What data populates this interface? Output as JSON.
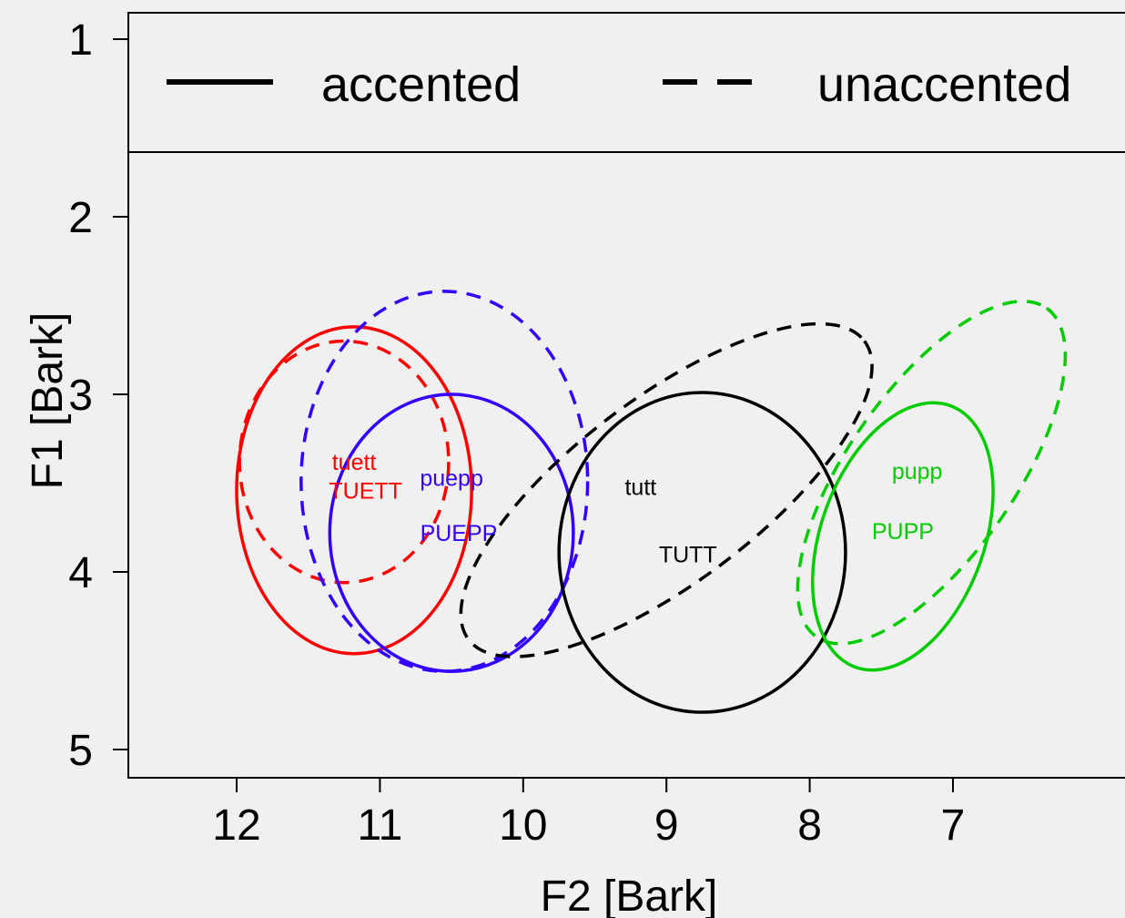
{
  "chart_data": {
    "type": "scatter",
    "subtype": "formant-ellipse-plot",
    "title": "",
    "xlabel": "F2 [Bark]",
    "ylabel": "F1 [Bark]",
    "x_axis": {
      "reversed": true,
      "ticks": [
        12,
        11,
        10,
        9,
        8,
        7
      ]
    },
    "y_axis": {
      "reversed": true,
      "ticks": [
        1,
        2,
        3,
        4,
        5
      ]
    },
    "grid": false,
    "legend": {
      "placement": "top",
      "entries": [
        {
          "label": "accented",
          "linestyle": "solid"
        },
        {
          "label": "unaccented",
          "linestyle": "dashed"
        }
      ]
    },
    "series": [
      {
        "vowel": "TUETT",
        "color": "#ff0000",
        "linestyle": "solid",
        "center": [
          11.18,
          3.54
        ],
        "rx": 0.82,
        "ry": 0.92,
        "rotation": 0
      },
      {
        "vowel": "tuett",
        "color": "#ff0000",
        "linestyle": "dashed",
        "center": [
          11.25,
          3.38
        ],
        "rx": 0.73,
        "ry": 0.68,
        "rotation": 0
      },
      {
        "vowel": "PUEPP",
        "color": "#3300ff",
        "linestyle": "solid",
        "center": [
          10.5,
          3.78
        ],
        "rx": 0.85,
        "ry": 0.78,
        "rotation": 0
      },
      {
        "vowel": "puepp",
        "color": "#3300ff",
        "linestyle": "dashed",
        "center": [
          10.55,
          3.49
        ],
        "rx": 1.0,
        "ry": 1.07,
        "rotation": 0
      },
      {
        "vowel": "TUTT",
        "color": "#000000",
        "linestyle": "solid",
        "center": [
          8.75,
          3.89
        ],
        "rx": 1.0,
        "ry": 0.9,
        "rotation": 0
      },
      {
        "vowel": "tutt",
        "color": "#000000",
        "linestyle": "dashed",
        "center": [
          9.0,
          3.54
        ],
        "rx": 1.73,
        "ry": 0.52,
        "rotation": -37
      },
      {
        "vowel": "PUPP",
        "color": "#00cc00",
        "linestyle": "solid",
        "center": [
          7.35,
          3.8
        ],
        "rx": 0.97,
        "ry": 0.46,
        "rotation": -70
      },
      {
        "vowel": "pupp",
        "color": "#00cc00",
        "linestyle": "dashed",
        "center": [
          7.15,
          3.44
        ],
        "rx": 1.4,
        "ry": 0.47,
        "rotation": -55
      }
    ],
    "labels": [
      {
        "text": "tuett",
        "x": 11.18,
        "y": 3.38,
        "color": "#ff0000"
      },
      {
        "text": "TUETT",
        "x": 11.1,
        "y": 3.54,
        "color": "#ff0000"
      },
      {
        "text": "puepp",
        "x": 10.5,
        "y": 3.47,
        "color": "#3300ff"
      },
      {
        "text": "PUEPP",
        "x": 10.45,
        "y": 3.78,
        "color": "#3300ff"
      },
      {
        "text": "tutt",
        "x": 9.18,
        "y": 3.52,
        "color": "#000000"
      },
      {
        "text": "TUTT",
        "x": 8.85,
        "y": 3.9,
        "color": "#000000"
      },
      {
        "text": "pupp",
        "x": 7.25,
        "y": 3.43,
        "color": "#00cc00"
      },
      {
        "text": "PUPP",
        "x": 7.35,
        "y": 3.77,
        "color": "#00cc00"
      }
    ]
  }
}
